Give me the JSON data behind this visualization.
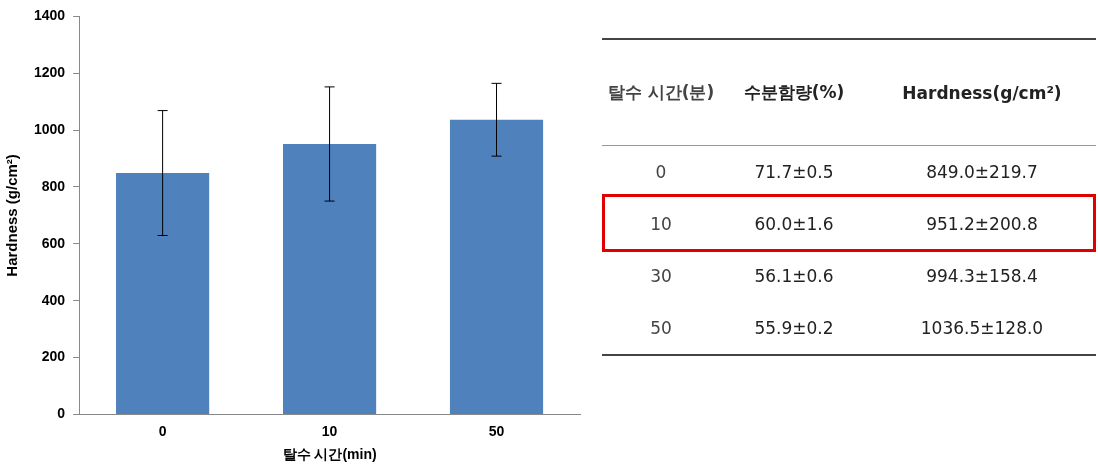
{
  "chart_data": [
    {
      "type": "bar",
      "xlabel": "탈수 시간(min)",
      "ylabel": "Hardness (g/cm²)",
      "categories": [
        "0",
        "10",
        "50"
      ],
      "values": [
        849.0,
        951.2,
        1036.5
      ],
      "errors": [
        219.7,
        200.8,
        128.0
      ],
      "color": "#4f81bd",
      "ylim": [
        0,
        1400
      ],
      "yticks": [
        0,
        200,
        400,
        600,
        800,
        1000,
        1200,
        1400
      ],
      "grid": false,
      "legend": false
    },
    {
      "type": "other",
      "annotations": [
        "탈수 시간(분)",
        "수분함량(%)",
        "Hardness(g/cm²)",
        "0",
        "71.7±0.5",
        "849.0±219.7",
        "10",
        "60.0±1.6",
        "951.2±200.8",
        "30",
        "56.1±0.6",
        "994.3±158.4",
        "50",
        "55.9±0.2",
        "1036.5±128.0"
      ]
    }
  ]
}
